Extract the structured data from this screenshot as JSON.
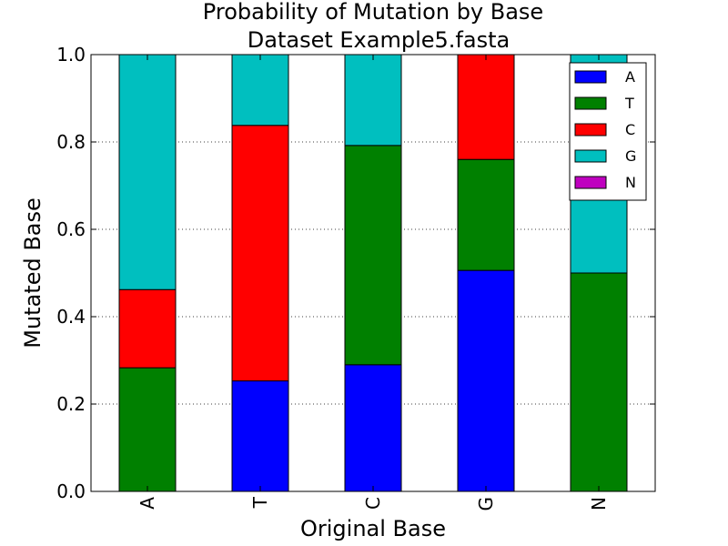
{
  "chart_data": {
    "type": "bar",
    "stacked": true,
    "title": "Probability of Mutation by Base",
    "subtitle": "Dataset Example5.fasta",
    "xlabel": "Original Base",
    "ylabel": "Mutated Base",
    "categories": [
      "A",
      "T",
      "C",
      "G",
      "N"
    ],
    "ylim": [
      0,
      1.0
    ],
    "yticks": [
      "0.0",
      "0.2",
      "0.4",
      "0.6",
      "0.8",
      "1.0"
    ],
    "grid": true,
    "legend_position": "top-right",
    "series": [
      {
        "name": "A",
        "color": "#0000ff",
        "values": [
          0.0,
          0.253,
          0.29,
          0.506,
          0.0
        ]
      },
      {
        "name": "T",
        "color": "#008000",
        "values": [
          0.283,
          0.0,
          0.502,
          0.254,
          0.5
        ]
      },
      {
        "name": "C",
        "color": "#ff0000",
        "values": [
          0.179,
          0.585,
          0.0,
          0.24,
          0.0
        ]
      },
      {
        "name": "G",
        "color": "#00bfbf",
        "values": [
          0.538,
          0.162,
          0.208,
          0.0,
          0.5
        ]
      },
      {
        "name": "N",
        "color": "#bf00bf",
        "values": [
          0.0,
          0.0,
          0.0,
          0.0,
          0.0
        ]
      }
    ]
  }
}
